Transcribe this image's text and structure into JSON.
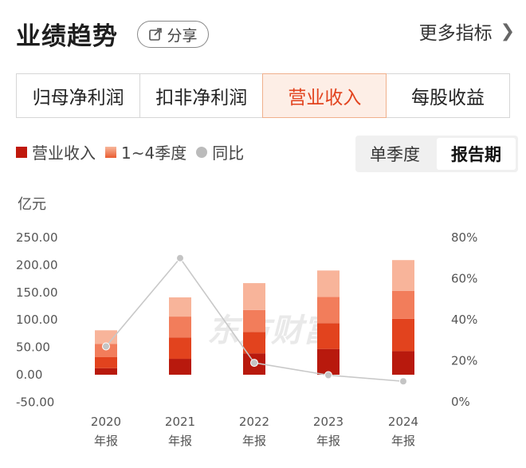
{
  "header": {
    "title": "业绩趋势",
    "share_label": "分享",
    "more_label": "更多指标"
  },
  "tabs": [
    {
      "label": "归母净利润",
      "active": false
    },
    {
      "label": "扣非净利润",
      "active": false
    },
    {
      "label": "营业收入",
      "active": true
    },
    {
      "label": "每股收益",
      "active": false
    }
  ],
  "legend": {
    "revenue": "营业收入",
    "quarters": "1~4季度",
    "yoy": "同比"
  },
  "period_toggle": {
    "single_quarter": "单季度",
    "report_period": "报告期",
    "active": "报告期"
  },
  "unit_label": "亿元",
  "watermark": "东方财富",
  "colors": {
    "accent": "#e2431e",
    "q1": "#b8190d",
    "q2": "#e2431e",
    "q3": "#f27d5b",
    "q4": "#f8b49a",
    "yoy_line": "#c8c8c8"
  },
  "chart_data": {
    "type": "bar",
    "stacked": true,
    "categories": [
      "2020\n年报",
      "2021\n年报",
      "2022\n年报",
      "2023\n年报",
      "2024\n年报"
    ],
    "category_lines": [
      [
        "2020",
        "年报"
      ],
      [
        "2021",
        "年报"
      ],
      [
        "2022",
        "年报"
      ],
      [
        "2023",
        "年报"
      ],
      [
        "2024",
        "年报"
      ]
    ],
    "left_axis": {
      "ticks": [
        "250.00",
        "200.00",
        "150.00",
        "100.00",
        "50.00",
        "0.00",
        "-50.00"
      ],
      "ylim": [
        -50,
        250
      ]
    },
    "right_axis": {
      "ticks": [
        "80%",
        "60%",
        "40%",
        "20%",
        "0%"
      ],
      "ylim": [
        0,
        80
      ]
    },
    "series": [
      {
        "name": "Q1",
        "values": [
          12,
          29,
          39,
          47,
          43
        ]
      },
      {
        "name": "Q2",
        "values": [
          20,
          39,
          39,
          47,
          59
        ]
      },
      {
        "name": "Q3",
        "values": [
          24,
          38,
          40,
          48,
          51
        ]
      },
      {
        "name": "Q4",
        "values": [
          25,
          35,
          49,
          48,
          56
        ]
      }
    ],
    "totals": [
      81,
      141,
      167,
      190,
      209
    ],
    "yoy_percent": [
      27,
      70,
      19,
      13,
      10
    ],
    "grid": false,
    "legend_position": "top-left"
  }
}
